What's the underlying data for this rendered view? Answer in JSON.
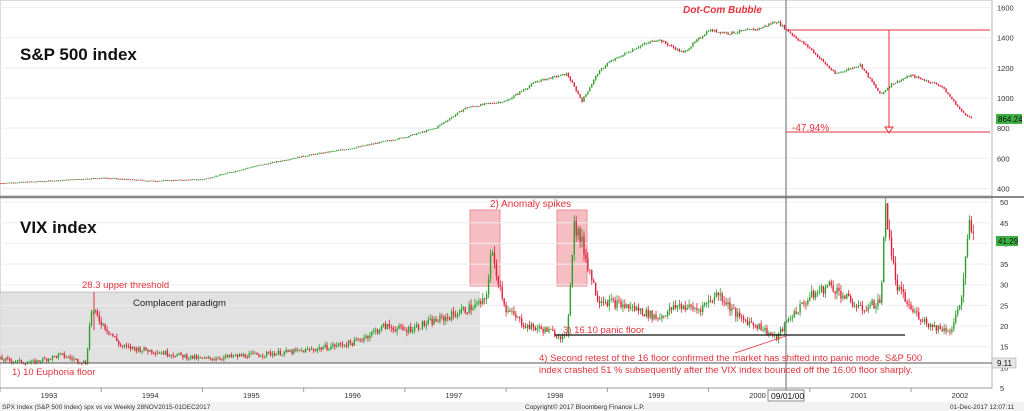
{
  "colors": {
    "background": "#ffffff",
    "up_candle": "#2e9e2e",
    "down_candle": "#e0203a",
    "annotation_red": "#e3333d",
    "highlight_box": "#f08a93",
    "shaded_region": "#d9d9d9",
    "last_price_badge": "#3cb043"
  },
  "header_annotation": "Dot-Com Bubble",
  "panels": {
    "spx": {
      "title": "S&P 500 index"
    },
    "vix": {
      "title": "VIX index"
    }
  },
  "annotations": {
    "drawdown_pct": "-47.94%",
    "anomaly": "2) Anomaly spikes",
    "upper_threshold": "28.3 upper threshold",
    "complacent": "Complacent paradigm",
    "panic_floor": "3) 16.10 panic floor",
    "euphoria_floor": "1) 10 Euphoria floor",
    "retest_line1": "4) Second retest of the 16 floor confirmed the market has shifted into panic mode. S&P 500",
    "retest_line2": "index crashed 51 % subsequently after the VIX index bounced off the 16.00 floor sharply.",
    "date_marker": "09/01/00"
  },
  "footer": {
    "left": "SPX Index (S&P 500 Index) spx vs vix  Weekly 28NOV2015-01DEC2017",
    "center": "Copyright© 2017 Bloomberg Finance L.P.",
    "right": "01-Dec-2017  12:07:11"
  },
  "chart_data": [
    {
      "type": "line",
      "title": "S&P 500 index",
      "ylim": [
        350,
        1650
      ],
      "yticks": [
        "400",
        "600",
        "800",
        "1000",
        "1200",
        "1400",
        "1600"
      ],
      "x_axis_labels": [
        "1993",
        "1994",
        "1995",
        "1996",
        "1997",
        "1998",
        "1999",
        "2000",
        "2001",
        "2002"
      ],
      "last_value_label": "864.24",
      "series": [
        {
          "x": [
            1993.0,
            1993.5,
            1994.0,
            1994.5,
            1995.0,
            1995.5,
            1996.0,
            1996.5,
            1997.0,
            1997.3,
            1997.6,
            1997.8,
            1998.0,
            1998.3,
            1998.6,
            1998.75,
            1998.9,
            1999.0,
            1999.3,
            1999.5,
            1999.75,
            2000.0,
            2000.2,
            2000.5,
            2000.67,
            2000.9,
            2001.0,
            2001.25,
            2001.5,
            2001.7,
            2001.8,
            2002.0,
            2002.3,
            2002.5,
            2002.6
          ],
          "values": [
            435,
            450,
            470,
            450,
            460,
            545,
            615,
            670,
            740,
            800,
            935,
            960,
            980,
            1110,
            1160,
            980,
            1160,
            1230,
            1340,
            1390,
            1300,
            1450,
            1430,
            1460,
            1510,
            1380,
            1330,
            1160,
            1220,
            1020,
            1090,
            1150,
            1080,
            910,
            864
          ]
        }
      ]
    },
    {
      "type": "line",
      "title": "VIX index",
      "ylim": [
        5,
        51
      ],
      "yticks": [
        "5",
        "10",
        "15",
        "20",
        "25",
        "30",
        "35",
        "40",
        "45",
        "50"
      ],
      "x_axis_labels": [
        "1993",
        "1994",
        "1995",
        "1996",
        "1997",
        "1998",
        "1999",
        "2000",
        "2001",
        "2002"
      ],
      "last_value_label": "41.29",
      "floor_value_label": "9.11",
      "series": [
        {
          "x": [
            1993.0,
            1993.3,
            1993.6,
            1993.85,
            1993.9,
            1994.2,
            1994.5,
            1995.0,
            1995.5,
            1996.0,
            1996.5,
            1996.8,
            1997.0,
            1997.4,
            1997.8,
            1997.85,
            1998.0,
            1998.2,
            1998.4,
            1998.6,
            1998.67,
            1998.75,
            1998.9,
            1999.0,
            1999.3,
            1999.5,
            1999.7,
            1999.9,
            2000.1,
            2000.3,
            2000.5,
            2000.67,
            2000.8,
            2001.0,
            2001.2,
            2001.5,
            2001.7,
            2001.75,
            2001.85,
            2002.0,
            2002.2,
            2002.4,
            2002.5,
            2002.58,
            2002.62
          ],
          "values": [
            12,
            11,
            13,
            11,
            24,
            15,
            14,
            12,
            13,
            14,
            16,
            20,
            19,
            22,
            26,
            38,
            24,
            20,
            19,
            17,
            45,
            40,
            27,
            26,
            24,
            22,
            25,
            24,
            28,
            22,
            20,
            17,
            22,
            27,
            30,
            24,
            26,
            49,
            30,
            24,
            20,
            19,
            27,
            45,
            41
          ]
        }
      ]
    }
  ]
}
